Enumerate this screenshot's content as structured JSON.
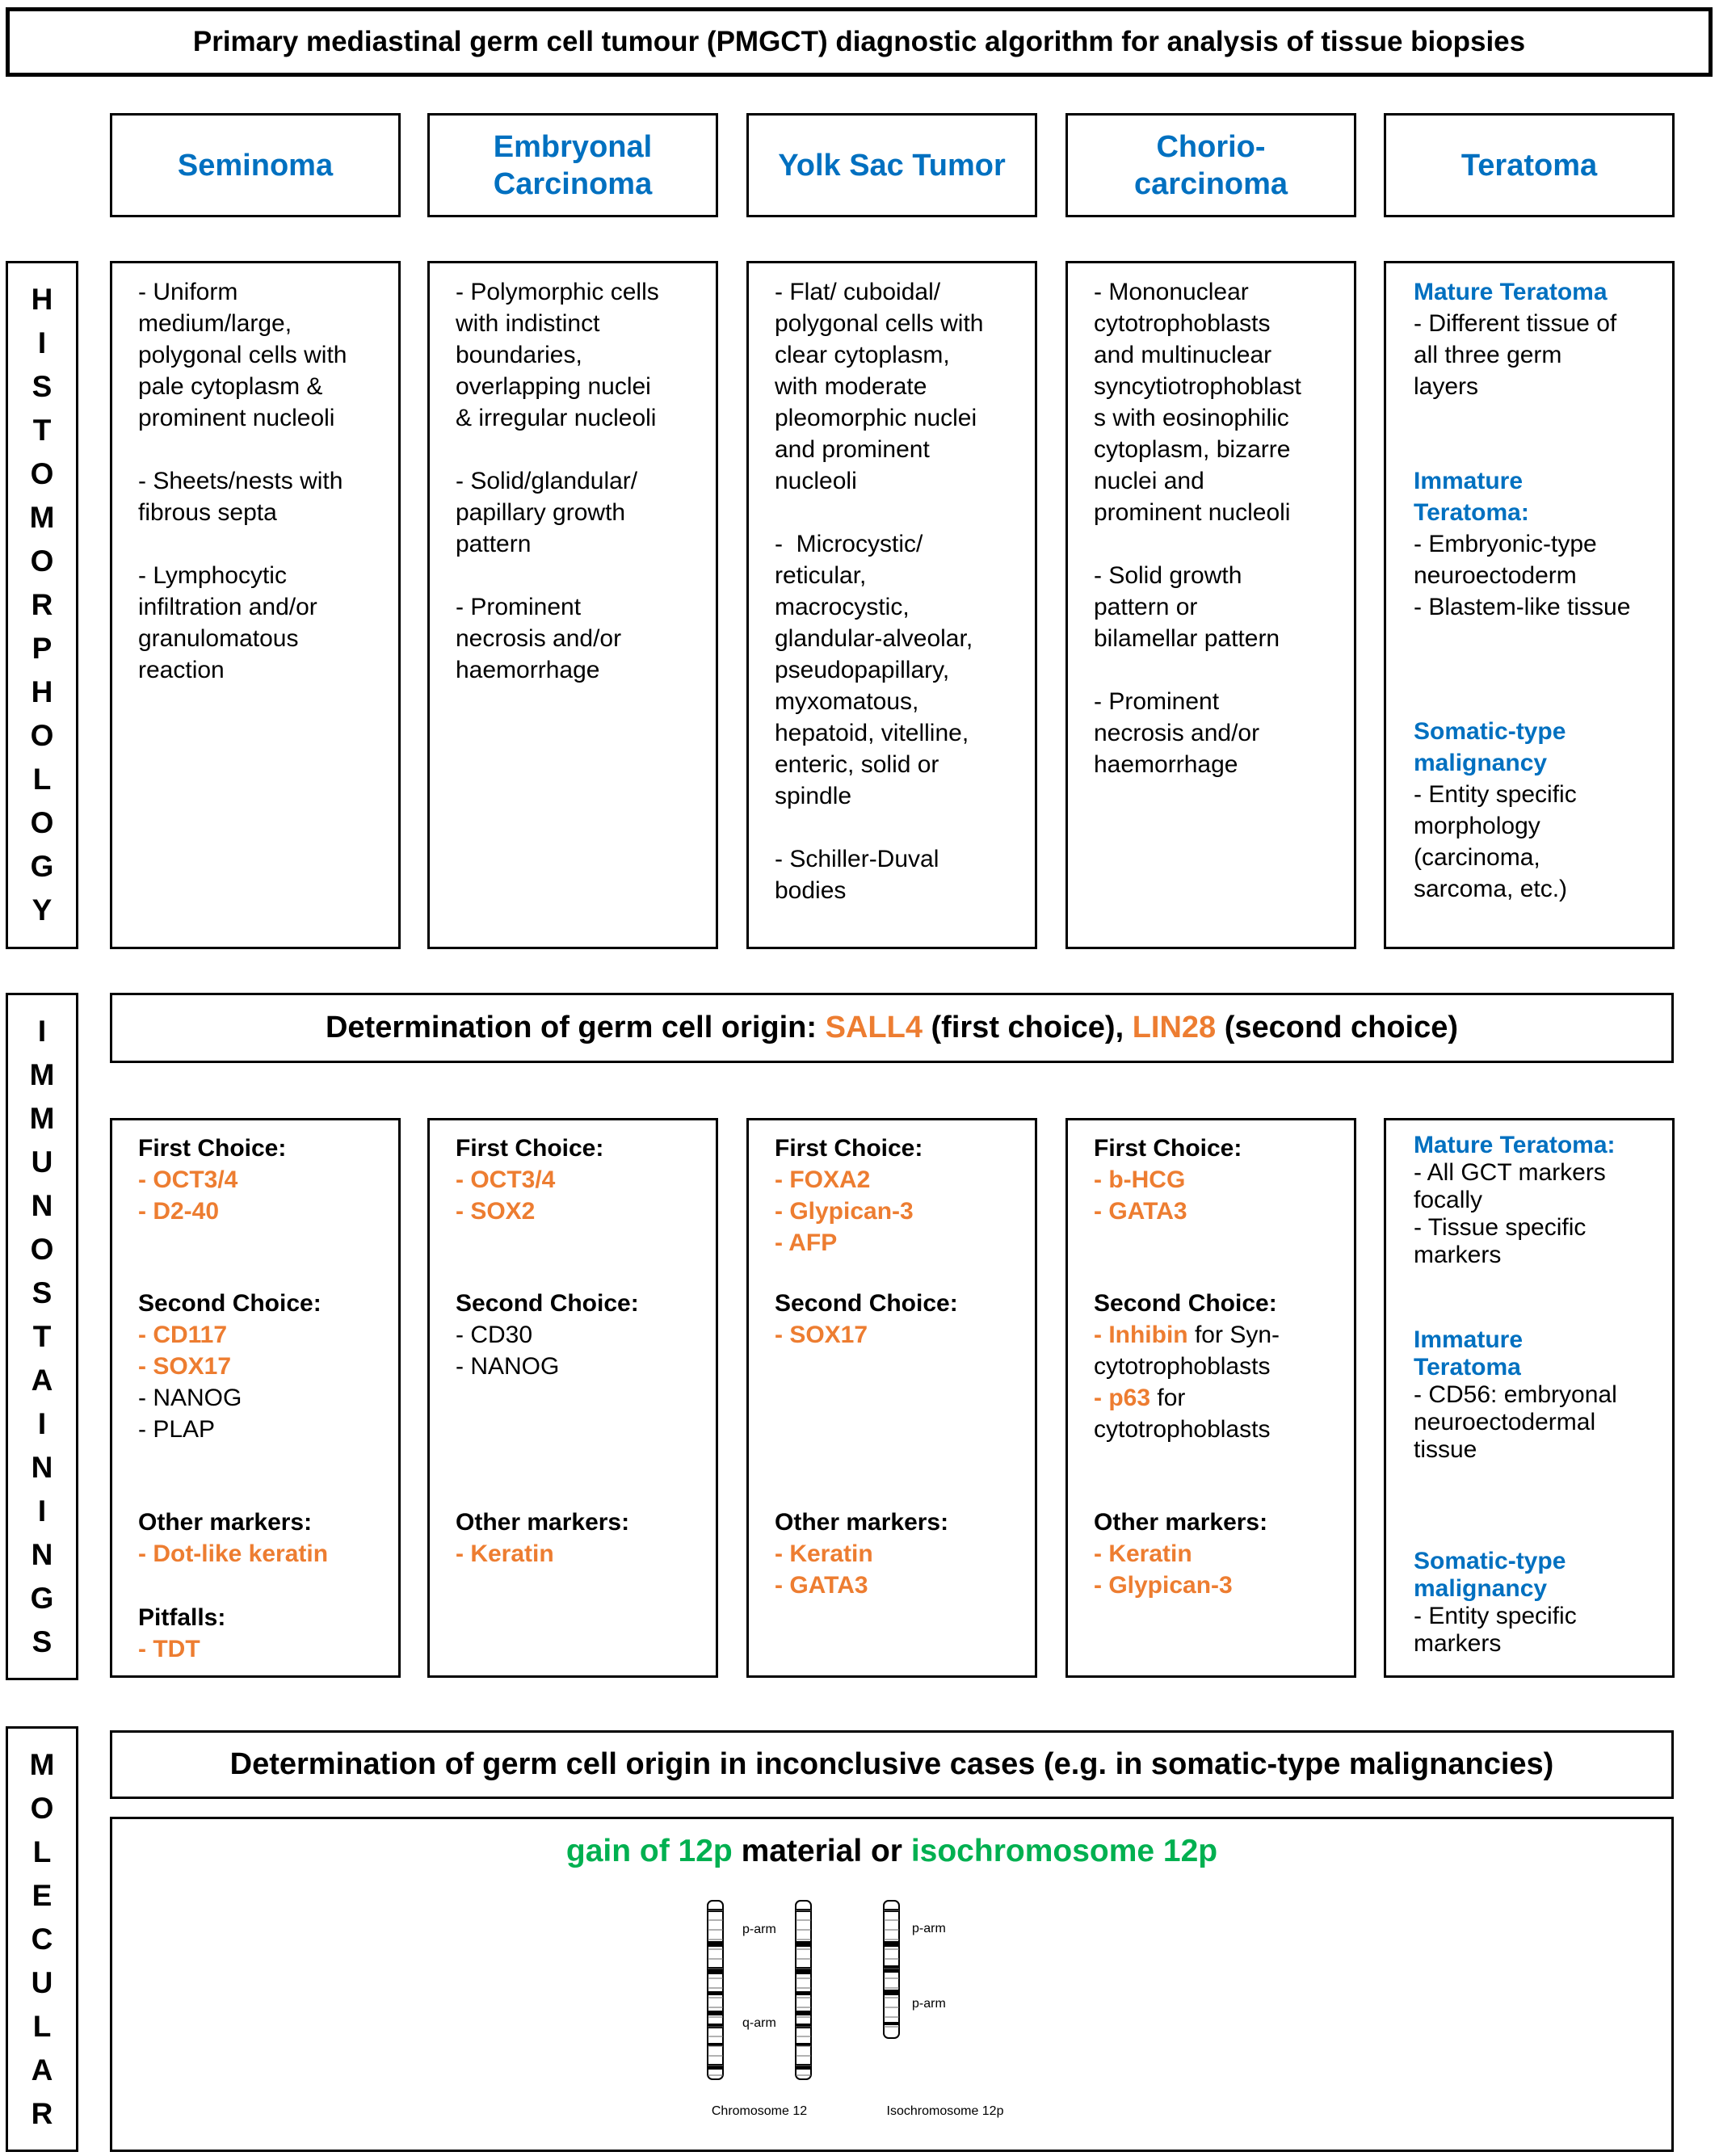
{
  "title": "Primary mediastinal germ cell tumour (PMGCT) diagnostic algorithm for analysis of tissue biopsies",
  "colors": {
    "orange": "#ED7D31",
    "blue": "#0070C0",
    "green": "#00B050"
  },
  "columns": [
    [
      "Seminoma"
    ],
    [
      "Embryonal",
      "Carcinoma"
    ],
    [
      "Yolk Sac Tumor"
    ],
    [
      "Chorio-",
      "carcinoma"
    ],
    [
      "Teratoma"
    ]
  ],
  "histomorphology": {
    "label": "HISTOMORPHOLOGY",
    "cells": [
      [
        [
          "- Uniform",
          "medium/large,",
          "polygonal cells with",
          "pale cytoplasm &",
          "prominent nucleoli"
        ],
        [
          "- Sheets/nests with",
          "fibrous septa"
        ],
        [
          "- Lymphocytic",
          "infiltration and/or",
          "granulomatous",
          "reaction"
        ]
      ],
      [
        [
          "- Polymorphic cells",
          "with indistinct",
          "boundaries,",
          "overlapping nuclei",
          "& irregular nucleoli"
        ],
        [
          "- Solid/glandular/",
          "papillary growth",
          "pattern"
        ],
        [
          "- Prominent",
          "necrosis and/or",
          "haemorrhage"
        ]
      ],
      [
        [
          "- Flat/ cuboidal/",
          "polygonal cells with",
          "clear cytoplasm,",
          "with moderate",
          "pleomorphic nuclei",
          "and prominent",
          "nucleoli"
        ],
        [
          "-  Microcystic/",
          "reticular,",
          "macrocystic,",
          "glandular-alveolar,",
          "pseudopapillary,",
          "myxomatous,",
          "hepatoid, vitelline,",
          "enteric, solid or",
          "spindle"
        ],
        [
          "- Schiller-Duval",
          "bodies"
        ]
      ],
      [
        [
          "- Mononuclear",
          "cytotrophoblasts",
          "and multinuclear",
          "syncytiotrophoblast",
          "s with eosinophilic",
          "cytoplasm, bizarre",
          "nuclei and",
          "prominent nucleoli"
        ],
        [
          "- Solid growth",
          "pattern or",
          "bilamellar pattern"
        ],
        [
          "- Prominent",
          "necrosis and/or",
          "haemorrhage"
        ]
      ],
      [
        [
          {
            "text": "Mature Teratoma",
            "color": "blue"
          },
          "- Different tissue of",
          "all three germ",
          "layers"
        ],
        [
          {
            "text": "Immature",
            "color": "blue"
          },
          {
            "text": "Teratoma:",
            "color": "blue"
          },
          "- Embryonic-type",
          "neuroectoderm",
          "- Blastem-like tissue"
        ],
        [
          {
            "text": "Somatic-type",
            "color": "blue"
          },
          {
            "text": "malignancy",
            "color": "blue"
          },
          "- Entity specific",
          "morphology",
          "(carcinoma,",
          "sarcoma, etc.)"
        ]
      ]
    ]
  },
  "immunostainings": {
    "label": "IMMUNOSTAININGS",
    "banner": [
      {
        "text": "Determination of germ cell origin: "
      },
      {
        "text": "SALL4",
        "color": "orange"
      },
      {
        "text": " (first choice), "
      },
      {
        "text": "LIN28",
        "color": "orange"
      },
      {
        "text": " (second choice)"
      }
    ],
    "cells": [
      [
        [
          {
            "text": "First Choice:",
            "bold": true
          },
          {
            "text": "- OCT3/4",
            "color": "orange"
          },
          {
            "text": "- D2-40",
            "color": "orange"
          }
        ],
        [
          {
            "text": "Second Choice:",
            "bold": true
          },
          {
            "text": "- CD117",
            "color": "orange"
          },
          {
            "text": "- SOX17",
            "color": "orange"
          },
          "- NANOG",
          "- PLAP"
        ],
        [
          {
            "text": "Other markers:",
            "bold": true
          },
          {
            "text": "- Dot-like keratin",
            "color": "orange"
          }
        ],
        [
          {
            "text": "Pitfalls:",
            "bold": true
          },
          {
            "text": "- TDT",
            "color": "orange"
          }
        ]
      ],
      [
        [
          {
            "text": "First Choice:",
            "bold": true
          },
          {
            "text": "- OCT3/4",
            "color": "orange"
          },
          {
            "text": "- SOX2",
            "color": "orange"
          }
        ],
        [
          {
            "text": "Second Choice:",
            "bold": true
          },
          "- CD30",
          "- NANOG"
        ],
        [
          {
            "text": "Other markers:",
            "bold": true
          },
          {
            "text": "- Keratin",
            "color": "orange"
          }
        ]
      ],
      [
        [
          {
            "text": "First Choice:",
            "bold": true
          },
          {
            "text": "- FOXA2",
            "color": "orange"
          },
          {
            "text": "- Glypican-3",
            "color": "orange"
          },
          {
            "text": "- AFP",
            "color": "orange"
          }
        ],
        [
          {
            "text": "Second Choice:",
            "bold": true
          },
          {
            "text": "- SOX17",
            "color": "orange"
          }
        ],
        [
          {
            "text": "Other markers:",
            "bold": true
          },
          {
            "text": "- Keratin",
            "color": "orange"
          },
          {
            "text": "- GATA3",
            "color": "orange"
          }
        ]
      ],
      [
        [
          {
            "text": "First Choice:",
            "bold": true
          },
          {
            "text": "- b-HCG",
            "color": "orange"
          },
          {
            "text": "- GATA3",
            "color": "orange"
          }
        ],
        [
          {
            "text": "Second Choice:",
            "bold": true
          },
          [
            {
              "text": "- Inhibin",
              "color": "orange"
            },
            {
              "text": " for Syn-"
            }
          ],
          "cytotrophoblasts",
          [
            {
              "text": "- p63",
              "color": "orange"
            },
            {
              "text": " for"
            }
          ],
          "cytotrophoblasts"
        ],
        [
          {
            "text": "Other markers:",
            "bold": true
          },
          {
            "text": "- Keratin",
            "color": "orange"
          },
          {
            "text": "- Glypican-3",
            "color": "orange"
          }
        ]
      ],
      [
        [
          {
            "text": "Mature Teratoma:",
            "color": "blue"
          },
          "- All GCT markers",
          "focally",
          "- Tissue specific",
          "markers"
        ],
        [
          {
            "text": "Immature",
            "color": "blue"
          },
          {
            "text": "Teratoma",
            "color": "blue"
          },
          "- CD56: embryonal",
          "neuroectodermal",
          "tissue"
        ],
        [
          {
            "text": "Somatic-type",
            "color": "blue"
          },
          {
            "text": "malignancy",
            "color": "blue"
          },
          "- Entity specific",
          "markers"
        ]
      ]
    ]
  },
  "molecular": {
    "label": "MOLECULAR",
    "banner": "Determination of germ cell origin in inconclusive cases (e.g. in somatic-type malignancies)",
    "finding": [
      {
        "text": "gain of 12p",
        "color": "green"
      },
      {
        "text": " material or "
      },
      {
        "text": "isochromosome 12p",
        "color": "green"
      }
    ],
    "chromosome": {
      "labels": [
        "p-arm",
        "q-arm"
      ],
      "caption": "Chromosome 12"
    },
    "isochromosome": {
      "labels": [
        "p-arm",
        "p-arm"
      ],
      "caption": "Isochromosome 12p"
    }
  }
}
